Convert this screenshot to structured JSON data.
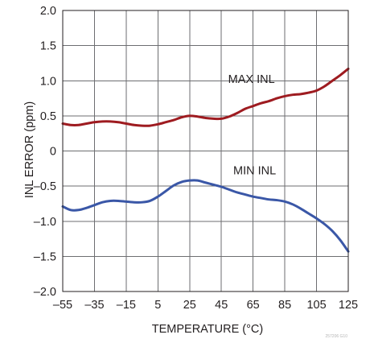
{
  "chart_data": {
    "type": "line",
    "title": "",
    "xlabel": "TEMPERATURE (°C)",
    "ylabel": "INL ERROR (ppm)",
    "xlim": [
      -55,
      125
    ],
    "ylim": [
      -2.0,
      2.0
    ],
    "x_ticks": [
      -55,
      -35,
      -15,
      5,
      25,
      45,
      65,
      85,
      105,
      125
    ],
    "x_tick_labels": [
      "–55",
      "–35",
      "–15",
      "5",
      "25",
      "45",
      "65",
      "85",
      "105",
      "125"
    ],
    "y_ticks": [
      -2.0,
      -1.5,
      -1.0,
      -0.5,
      0,
      0.5,
      1.0,
      1.5,
      2.0
    ],
    "y_tick_labels": [
      "–2.0",
      "–1.5",
      "–1.0",
      "–0.5",
      "0",
      "0.5",
      "1.0",
      "1.5",
      "2.0"
    ],
    "grid": true,
    "figure_id": "257206 G10",
    "series": [
      {
        "name": "MAX INL",
        "color": "#9e1b20",
        "label_anchor": {
          "x": 64,
          "y": 0.97
        },
        "x": [
          -55,
          -50,
          -45,
          -40,
          -35,
          -30,
          -25,
          -20,
          -15,
          -10,
          -5,
          0,
          5,
          10,
          15,
          20,
          25,
          30,
          35,
          40,
          45,
          50,
          55,
          60,
          65,
          70,
          75,
          80,
          85,
          90,
          95,
          100,
          105,
          110,
          115,
          120,
          125
        ],
        "y": [
          0.39,
          0.37,
          0.37,
          0.39,
          0.41,
          0.42,
          0.42,
          0.41,
          0.39,
          0.37,
          0.36,
          0.36,
          0.38,
          0.41,
          0.44,
          0.48,
          0.5,
          0.49,
          0.47,
          0.46,
          0.46,
          0.49,
          0.54,
          0.6,
          0.64,
          0.68,
          0.71,
          0.75,
          0.78,
          0.8,
          0.81,
          0.83,
          0.86,
          0.92,
          1.0,
          1.08,
          1.17
        ]
      },
      {
        "name": "MIN INL",
        "color": "#3a57a7",
        "label_anchor": {
          "x": 66,
          "y": -0.33
        },
        "x": [
          -55,
          -50,
          -45,
          -40,
          -35,
          -30,
          -25,
          -20,
          -15,
          -10,
          -5,
          0,
          5,
          10,
          15,
          20,
          25,
          30,
          35,
          40,
          45,
          50,
          55,
          60,
          65,
          70,
          75,
          80,
          85,
          90,
          95,
          100,
          105,
          110,
          115,
          120,
          125
        ],
        "y": [
          -0.79,
          -0.84,
          -0.84,
          -0.81,
          -0.77,
          -0.73,
          -0.71,
          -0.71,
          -0.72,
          -0.73,
          -0.73,
          -0.71,
          -0.65,
          -0.57,
          -0.49,
          -0.44,
          -0.42,
          -0.42,
          -0.45,
          -0.48,
          -0.51,
          -0.55,
          -0.59,
          -0.62,
          -0.65,
          -0.67,
          -0.69,
          -0.7,
          -0.72,
          -0.76,
          -0.82,
          -0.89,
          -0.96,
          -1.04,
          -1.14,
          -1.27,
          -1.43
        ]
      }
    ]
  }
}
